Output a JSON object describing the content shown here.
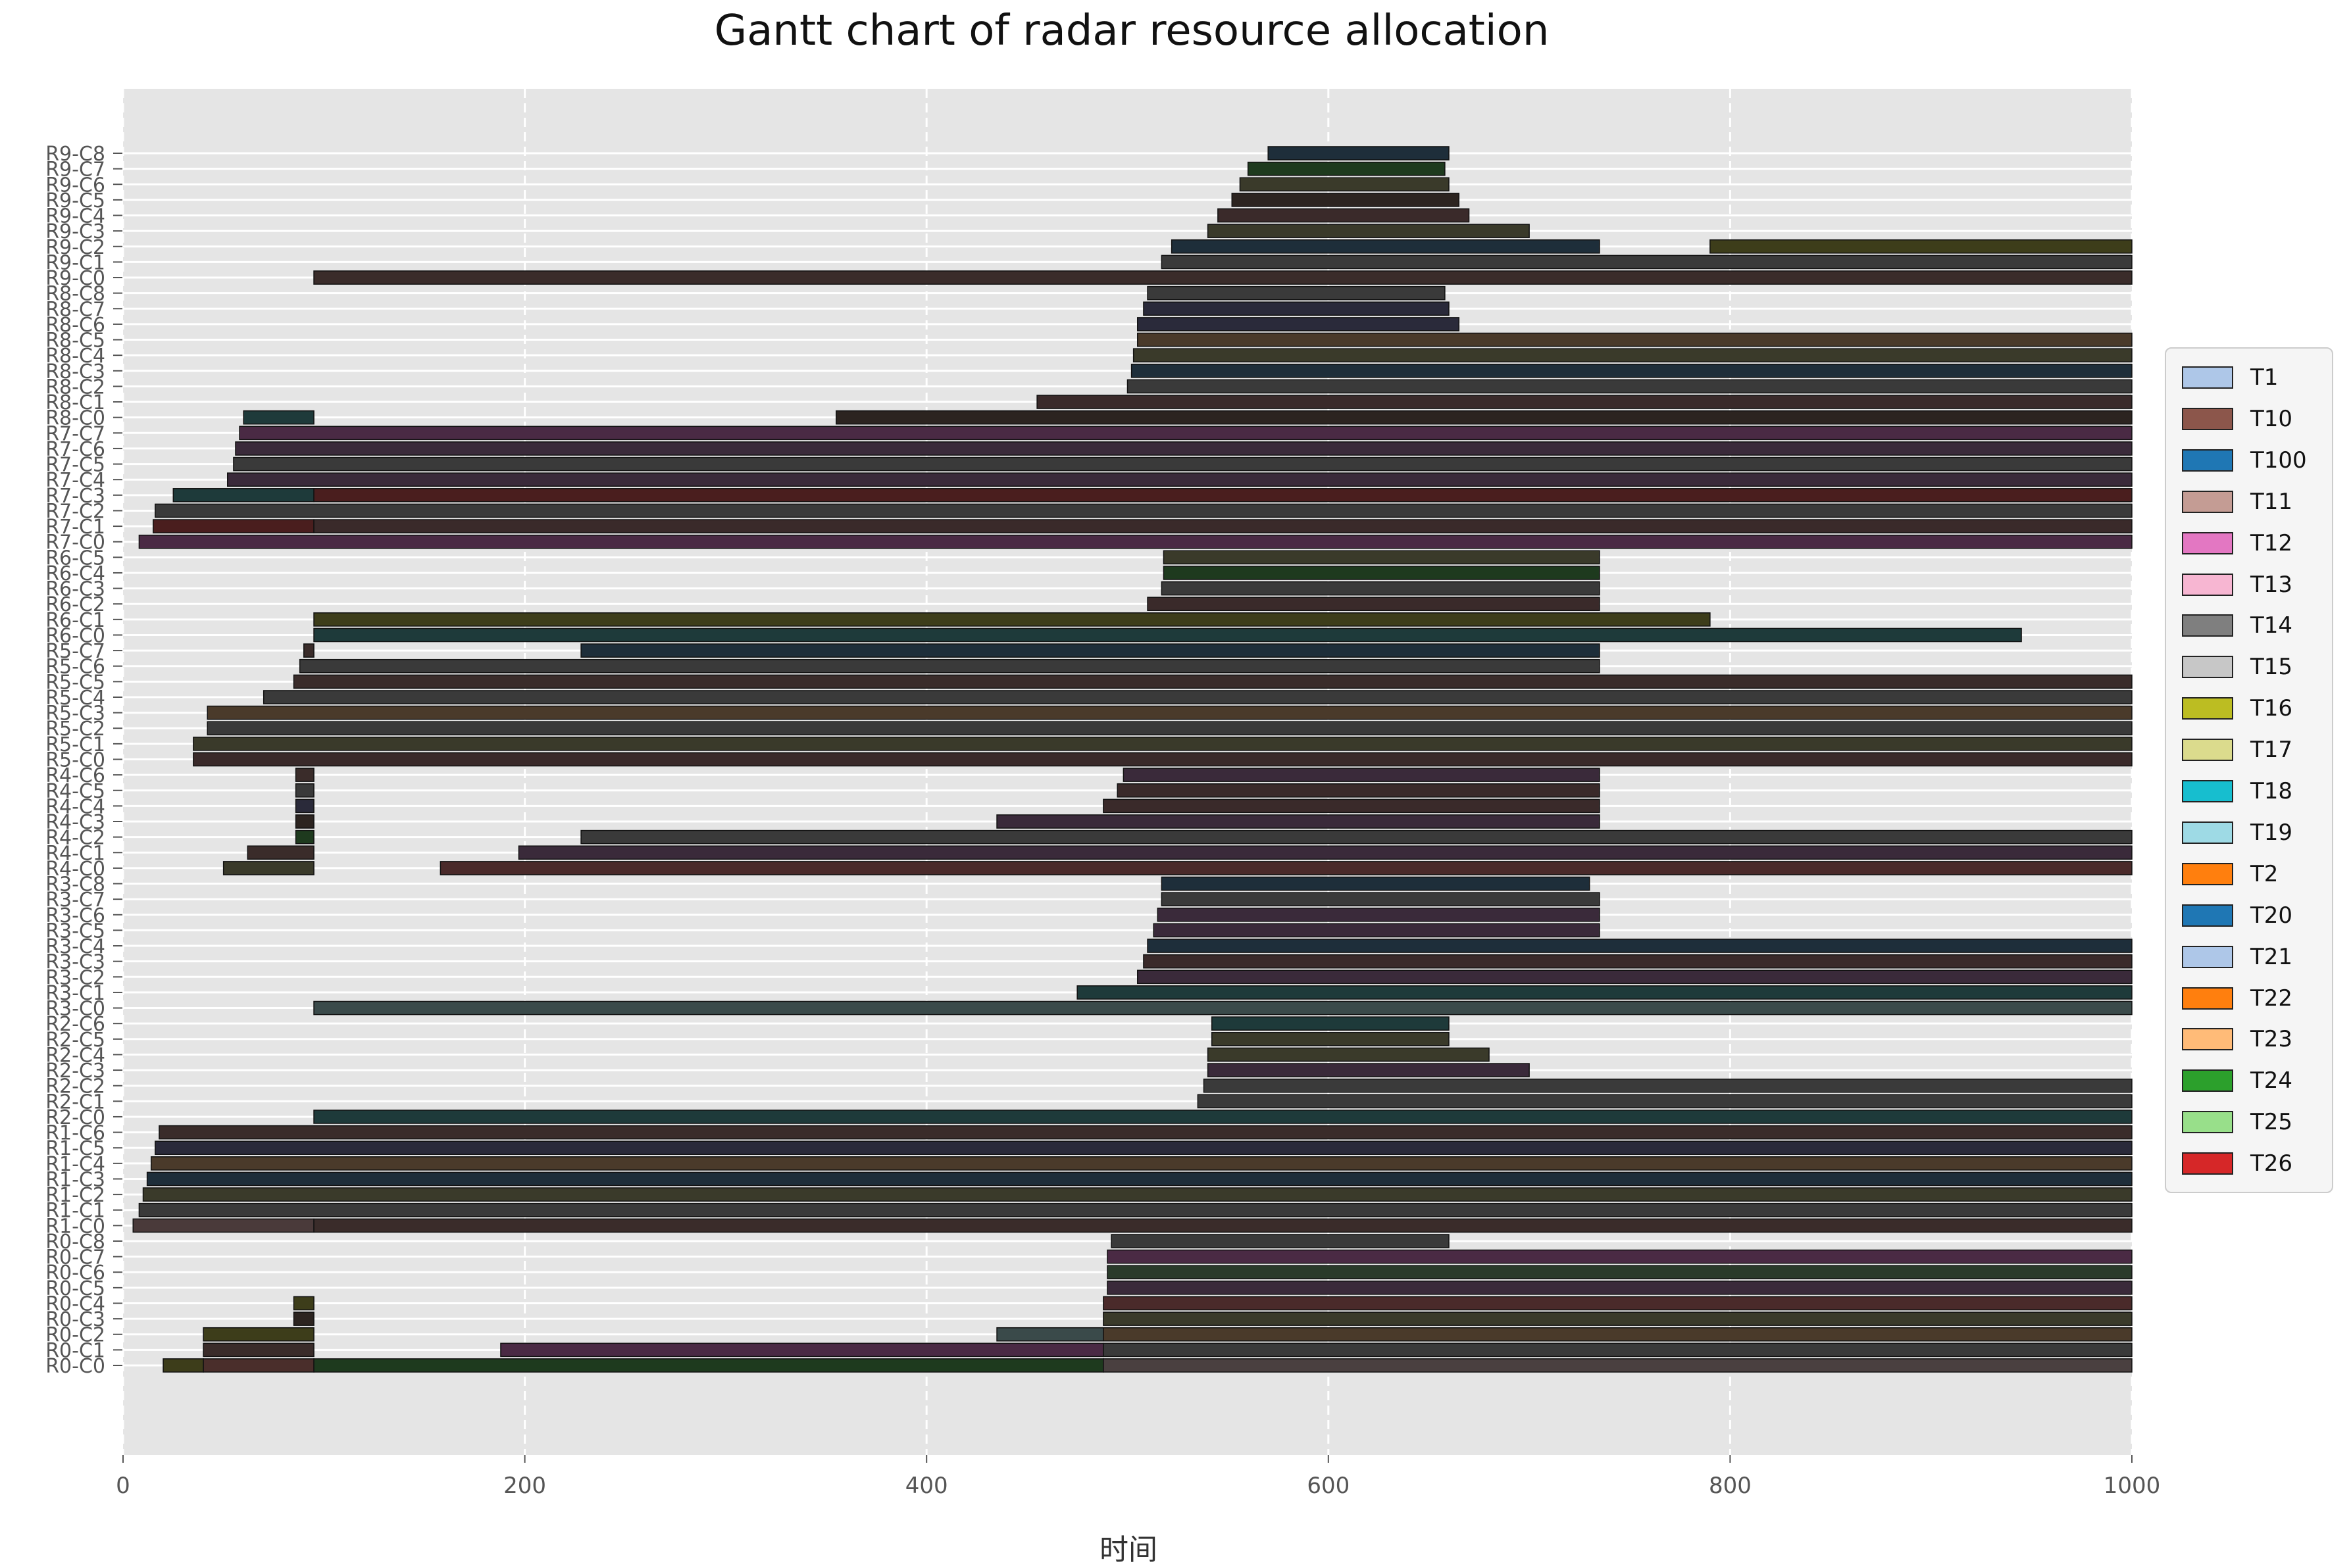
{
  "chart_data": {
    "type": "gantt",
    "title": "Gantt chart of radar resource allocation",
    "xlabel": "时间",
    "ylabel": "",
    "xlim": [
      0,
      1000
    ],
    "xticks": [
      "0",
      "200",
      "400",
      "600",
      "800",
      "1000"
    ],
    "grid": true,
    "legend_placement": "right",
    "categories": [
      "R0-C0",
      "R0-C1",
      "R0-C2",
      "R0-C3",
      "R0-C4",
      "R0-C5",
      "R0-C6",
      "R0-C7",
      "R0-C8",
      "R1-C0",
      "R1-C1",
      "R1-C2",
      "R1-C3",
      "R1-C4",
      "R1-C5",
      "R1-C6",
      "R2-C0",
      "R2-C1",
      "R2-C2",
      "R2-C3",
      "R2-C4",
      "R2-C5",
      "R2-C6",
      "R3-C0",
      "R3-C1",
      "R3-C2",
      "R3-C3",
      "R3-C4",
      "R3-C5",
      "R3-C6",
      "R3-C7",
      "R3-C8",
      "R4-C0",
      "R4-C1",
      "R4-C2",
      "R4-C3",
      "R4-C4",
      "R4-C5",
      "R4-C6",
      "R5-C0",
      "R5-C1",
      "R5-C2",
      "R5-C3",
      "R5-C4",
      "R5-C5",
      "R5-C6",
      "R5-C7",
      "R6-C0",
      "R6-C1",
      "R6-C2",
      "R6-C3",
      "R6-C4",
      "R6-C5",
      "R7-C0",
      "R7-C1",
      "R7-C2",
      "R7-C3",
      "R7-C4",
      "R7-C5",
      "R7-C6",
      "R7-C7",
      "R8-C0",
      "R8-C1",
      "R8-C2",
      "R8-C3",
      "R8-C4",
      "R8-C5",
      "R8-C6",
      "R8-C7",
      "R8-C8",
      "R9-C0",
      "R9-C1",
      "R9-C2",
      "R9-C3",
      "R9-C4",
      "R9-C5",
      "R9-C6",
      "R9-C7",
      "R9-C8"
    ],
    "legend": [
      {
        "label": "T1",
        "color": "#aec7e8"
      },
      {
        "label": "T10",
        "color": "#8c564b"
      },
      {
        "label": "T100",
        "color": "#1f77b4"
      },
      {
        "label": "T11",
        "color": "#c49c94"
      },
      {
        "label": "T12",
        "color": "#e377c2"
      },
      {
        "label": "T13",
        "color": "#f7b6d2"
      },
      {
        "label": "T14",
        "color": "#7f7f7f"
      },
      {
        "label": "T15",
        "color": "#c7c7c7"
      },
      {
        "label": "T16",
        "color": "#bcbd22"
      },
      {
        "label": "T17",
        "color": "#dbdb8d"
      },
      {
        "label": "T18",
        "color": "#17becf"
      },
      {
        "label": "T19",
        "color": "#9edae5"
      },
      {
        "label": "T2",
        "color": "#ff7f0e"
      },
      {
        "label": "T20",
        "color": "#1f77b4"
      },
      {
        "label": "T21",
        "color": "#aec7e8"
      },
      {
        "label": "T22",
        "color": "#ff7f0e"
      },
      {
        "label": "T23",
        "color": "#ffbb78"
      },
      {
        "label": "T24",
        "color": "#2ca02c"
      },
      {
        "label": "T25",
        "color": "#98df8a"
      },
      {
        "label": "T26",
        "color": "#d62728"
      }
    ],
    "rows": [
      {
        "row": "R0-C0",
        "segments": [
          [
            20,
            40,
            "#3d3d1a"
          ],
          [
            40,
            95,
            "#4a2e2b"
          ],
          [
            95,
            488,
            "#1e3a1e"
          ],
          [
            488,
            1000,
            "#4a4040"
          ]
        ]
      },
      {
        "row": "R0-C1",
        "segments": [
          [
            40,
            95,
            "#3a2c2a"
          ],
          [
            188,
            488,
            "#4a2a44"
          ],
          [
            488,
            1000,
            "#3a3a3a"
          ]
        ]
      },
      {
        "row": "R0-C2",
        "segments": [
          [
            40,
            95,
            "#3d3d1a"
          ],
          [
            435,
            488,
            "#3a4a4a"
          ],
          [
            488,
            1000,
            "#4a3a2a"
          ]
        ]
      },
      {
        "row": "R0-C3",
        "segments": [
          [
            85,
            95,
            "#2c2420"
          ],
          [
            488,
            1000,
            "#3a3a2a"
          ]
        ]
      },
      {
        "row": "R0-C4",
        "segments": [
          [
            85,
            95,
            "#3d3d1a"
          ],
          [
            488,
            1000,
            "#4a2a2a"
          ]
        ]
      },
      {
        "row": "R0-C5",
        "segments": [
          [
            490,
            1000,
            "#3a2a3a"
          ]
        ]
      },
      {
        "row": "R0-C6",
        "segments": [
          [
            490,
            1000,
            "#2a3a2a"
          ]
        ]
      },
      {
        "row": "R0-C7",
        "segments": [
          [
            490,
            1000,
            "#4a2a44"
          ]
        ]
      },
      {
        "row": "R0-C8",
        "segments": [
          [
            492,
            660,
            "#3a3a3a"
          ]
        ]
      },
      {
        "row": "R1-C0",
        "segments": [
          [
            5,
            95,
            "#4a3a3a"
          ],
          [
            95,
            1000,
            "#3a2c2a"
          ]
        ]
      },
      {
        "row": "R1-C1",
        "segments": [
          [
            8,
            1000,
            "#3a3a3a"
          ]
        ]
      },
      {
        "row": "R1-C2",
        "segments": [
          [
            10,
            1000,
            "#3a3a2a"
          ]
        ]
      },
      {
        "row": "R1-C3",
        "segments": [
          [
            12,
            1000,
            "#1e2e3a"
          ]
        ]
      },
      {
        "row": "R1-C4",
        "segments": [
          [
            14,
            1000,
            "#4a3a2a"
          ]
        ]
      },
      {
        "row": "R1-C5",
        "segments": [
          [
            16,
            1000,
            "#2a2a3a"
          ]
        ]
      },
      {
        "row": "R1-C6",
        "segments": [
          [
            18,
            1000,
            "#3a2c2a"
          ]
        ]
      },
      {
        "row": "R2-C0",
        "segments": [
          [
            95,
            1000,
            "#1e3a3a"
          ]
        ]
      },
      {
        "row": "R2-C1",
        "segments": [
          [
            535,
            1000,
            "#3a3a3a"
          ]
        ]
      },
      {
        "row": "R2-C2",
        "segments": [
          [
            538,
            1000,
            "#3a3a3a"
          ]
        ]
      },
      {
        "row": "R2-C3",
        "segments": [
          [
            540,
            700,
            "#3a2a3a"
          ]
        ]
      },
      {
        "row": "R2-C4",
        "segments": [
          [
            540,
            680,
            "#3a3a2a"
          ]
        ]
      },
      {
        "row": "R2-C5",
        "segments": [
          [
            542,
            660,
            "#3a3a2a"
          ]
        ]
      },
      {
        "row": "R2-C6",
        "segments": [
          [
            542,
            660,
            "#1e3a3a"
          ]
        ]
      },
      {
        "row": "R3-C0",
        "segments": [
          [
            95,
            1000,
            "#3a4a4a"
          ]
        ]
      },
      {
        "row": "R3-C1",
        "segments": [
          [
            475,
            1000,
            "#1e3a3a"
          ]
        ]
      },
      {
        "row": "R3-C2",
        "segments": [
          [
            505,
            1000,
            "#3a2a3a"
          ]
        ]
      },
      {
        "row": "R3-C3",
        "segments": [
          [
            508,
            1000,
            "#3a2a2a"
          ]
        ]
      },
      {
        "row": "R3-C4",
        "segments": [
          [
            510,
            1000,
            "#1e2e3a"
          ]
        ]
      },
      {
        "row": "R3-C5",
        "segments": [
          [
            513,
            735,
            "#3a2a3a"
          ]
        ]
      },
      {
        "row": "R3-C6",
        "segments": [
          [
            515,
            735,
            "#3a2a3a"
          ]
        ]
      },
      {
        "row": "R3-C7",
        "segments": [
          [
            517,
            735,
            "#3a3a3a"
          ]
        ]
      },
      {
        "row": "R3-C8",
        "segments": [
          [
            517,
            730,
            "#1e2e3a"
          ]
        ]
      },
      {
        "row": "R4-C0",
        "segments": [
          [
            50,
            95,
            "#3a3a2a"
          ],
          [
            158,
            1000,
            "#4a2a2a"
          ]
        ]
      },
      {
        "row": "R4-C1",
        "segments": [
          [
            62,
            95,
            "#3a2c2a"
          ],
          [
            197,
            1000,
            "#3a2a3a"
          ]
        ]
      },
      {
        "row": "R4-C2",
        "segments": [
          [
            86,
            95,
            "#1e3a1e"
          ],
          [
            228,
            1000,
            "#3a3a3a"
          ]
        ]
      },
      {
        "row": "R4-C3",
        "segments": [
          [
            86,
            95,
            "#2c2420"
          ],
          [
            435,
            735,
            "#3a2a3a"
          ]
        ]
      },
      {
        "row": "R4-C4",
        "segments": [
          [
            86,
            95,
            "#2a2a3a"
          ],
          [
            488,
            735,
            "#3a2a2a"
          ]
        ]
      },
      {
        "row": "R4-C5",
        "segments": [
          [
            86,
            95,
            "#3a3a3a"
          ],
          [
            495,
            735,
            "#3a2a2a"
          ]
        ]
      },
      {
        "row": "R4-C6",
        "segments": [
          [
            86,
            95,
            "#3a2c2a"
          ],
          [
            498,
            735,
            "#3a2a3a"
          ]
        ]
      },
      {
        "row": "R5-C0",
        "segments": [
          [
            35,
            1000,
            "#3a2a2a"
          ]
        ]
      },
      {
        "row": "R5-C1",
        "segments": [
          [
            35,
            1000,
            "#3a3a2a"
          ]
        ]
      },
      {
        "row": "R5-C2",
        "segments": [
          [
            42,
            1000,
            "#3a3a3a"
          ]
        ]
      },
      {
        "row": "R5-C3",
        "segments": [
          [
            42,
            1000,
            "#4a3a2a"
          ]
        ]
      },
      {
        "row": "R5-C4",
        "segments": [
          [
            70,
            1000,
            "#3a3a3a"
          ]
        ]
      },
      {
        "row": "R5-C5",
        "segments": [
          [
            85,
            1000,
            "#3a2c2a"
          ]
        ]
      },
      {
        "row": "R5-C6",
        "segments": [
          [
            88,
            735,
            "#3a3a3a"
          ]
        ]
      },
      {
        "row": "R5-C7",
        "segments": [
          [
            90,
            95,
            "#3a2c2a"
          ],
          [
            228,
            735,
            "#1e2e3a"
          ]
        ]
      },
      {
        "row": "R6-C0",
        "segments": [
          [
            95,
            945,
            "#1e3a3a"
          ]
        ]
      },
      {
        "row": "R6-C1",
        "segments": [
          [
            95,
            790,
            "#3d3d1a"
          ]
        ]
      },
      {
        "row": "R6-C2",
        "segments": [
          [
            510,
            735,
            "#3a2a2a"
          ]
        ]
      },
      {
        "row": "R6-C3",
        "segments": [
          [
            517,
            735,
            "#3a3a3a"
          ]
        ]
      },
      {
        "row": "R6-C4",
        "segments": [
          [
            518,
            735,
            "#1e3a1e"
          ]
        ]
      },
      {
        "row": "R6-C5",
        "segments": [
          [
            518,
            735,
            "#3a3a2a"
          ]
        ]
      },
      {
        "row": "R7-C0",
        "segments": [
          [
            8,
            1000,
            "#4a2a44"
          ]
        ]
      },
      {
        "row": "R7-C1",
        "segments": [
          [
            15,
            95,
            "#4a1e1e"
          ],
          [
            95,
            1000,
            "#3a2a2a"
          ]
        ]
      },
      {
        "row": "R7-C2",
        "segments": [
          [
            16,
            1000,
            "#3a3a3a"
          ]
        ]
      },
      {
        "row": "R7-C3",
        "segments": [
          [
            25,
            95,
            "#1e3a3a"
          ],
          [
            95,
            1000,
            "#4a1e1e"
          ]
        ]
      },
      {
        "row": "R7-C4",
        "segments": [
          [
            52,
            1000,
            "#3a2a3a"
          ]
        ]
      },
      {
        "row": "R7-C5",
        "segments": [
          [
            55,
            1000,
            "#3a3a3a"
          ]
        ]
      },
      {
        "row": "R7-C6",
        "segments": [
          [
            56,
            1000,
            "#3a2a3a"
          ]
        ]
      },
      {
        "row": "R7-C7",
        "segments": [
          [
            58,
            1000,
            "#4a2a44"
          ]
        ]
      },
      {
        "row": "R8-C0",
        "segments": [
          [
            60,
            95,
            "#1e3a3a"
          ],
          [
            355,
            1000,
            "#2c2420"
          ]
        ]
      },
      {
        "row": "R8-C1",
        "segments": [
          [
            455,
            1000,
            "#3a2a2a"
          ]
        ]
      },
      {
        "row": "R8-C2",
        "segments": [
          [
            500,
            1000,
            "#3a3a3a"
          ]
        ]
      },
      {
        "row": "R8-C3",
        "segments": [
          [
            502,
            1000,
            "#1e2e3a"
          ]
        ]
      },
      {
        "row": "R8-C4",
        "segments": [
          [
            503,
            1000,
            "#3a3a2a"
          ]
        ]
      },
      {
        "row": "R8-C5",
        "segments": [
          [
            505,
            1000,
            "#4a3a2a"
          ]
        ]
      },
      {
        "row": "R8-C6",
        "segments": [
          [
            505,
            665,
            "#2a2a3a"
          ]
        ]
      },
      {
        "row": "R8-C7",
        "segments": [
          [
            508,
            660,
            "#2a2a3a"
          ]
        ]
      },
      {
        "row": "R8-C8",
        "segments": [
          [
            510,
            658,
            "#3a3a3a"
          ]
        ]
      },
      {
        "row": "R9-C0",
        "segments": [
          [
            95,
            1000,
            "#3a2c2a"
          ]
        ]
      },
      {
        "row": "R9-C1",
        "segments": [
          [
            517,
            1000,
            "#3a3a3a"
          ]
        ]
      },
      {
        "row": "R9-C2",
        "segments": [
          [
            522,
            735,
            "#1e2e3a"
          ],
          [
            790,
            1000,
            "#3d3d1a"
          ]
        ]
      },
      {
        "row": "R9-C3",
        "segments": [
          [
            540,
            700,
            "#3a3a2a"
          ]
        ]
      },
      {
        "row": "R9-C4",
        "segments": [
          [
            545,
            670,
            "#3a2a2a"
          ]
        ]
      },
      {
        "row": "R9-C5",
        "segments": [
          [
            552,
            665,
            "#2c2420"
          ]
        ]
      },
      {
        "row": "R9-C6",
        "segments": [
          [
            556,
            660,
            "#3a3a2a"
          ]
        ]
      },
      {
        "row": "R9-C7",
        "segments": [
          [
            560,
            658,
            "#1e3a1e"
          ]
        ]
      },
      {
        "row": "R9-C8",
        "segments": [
          [
            570,
            660,
            "#1e2e3a"
          ]
        ]
      }
    ]
  }
}
